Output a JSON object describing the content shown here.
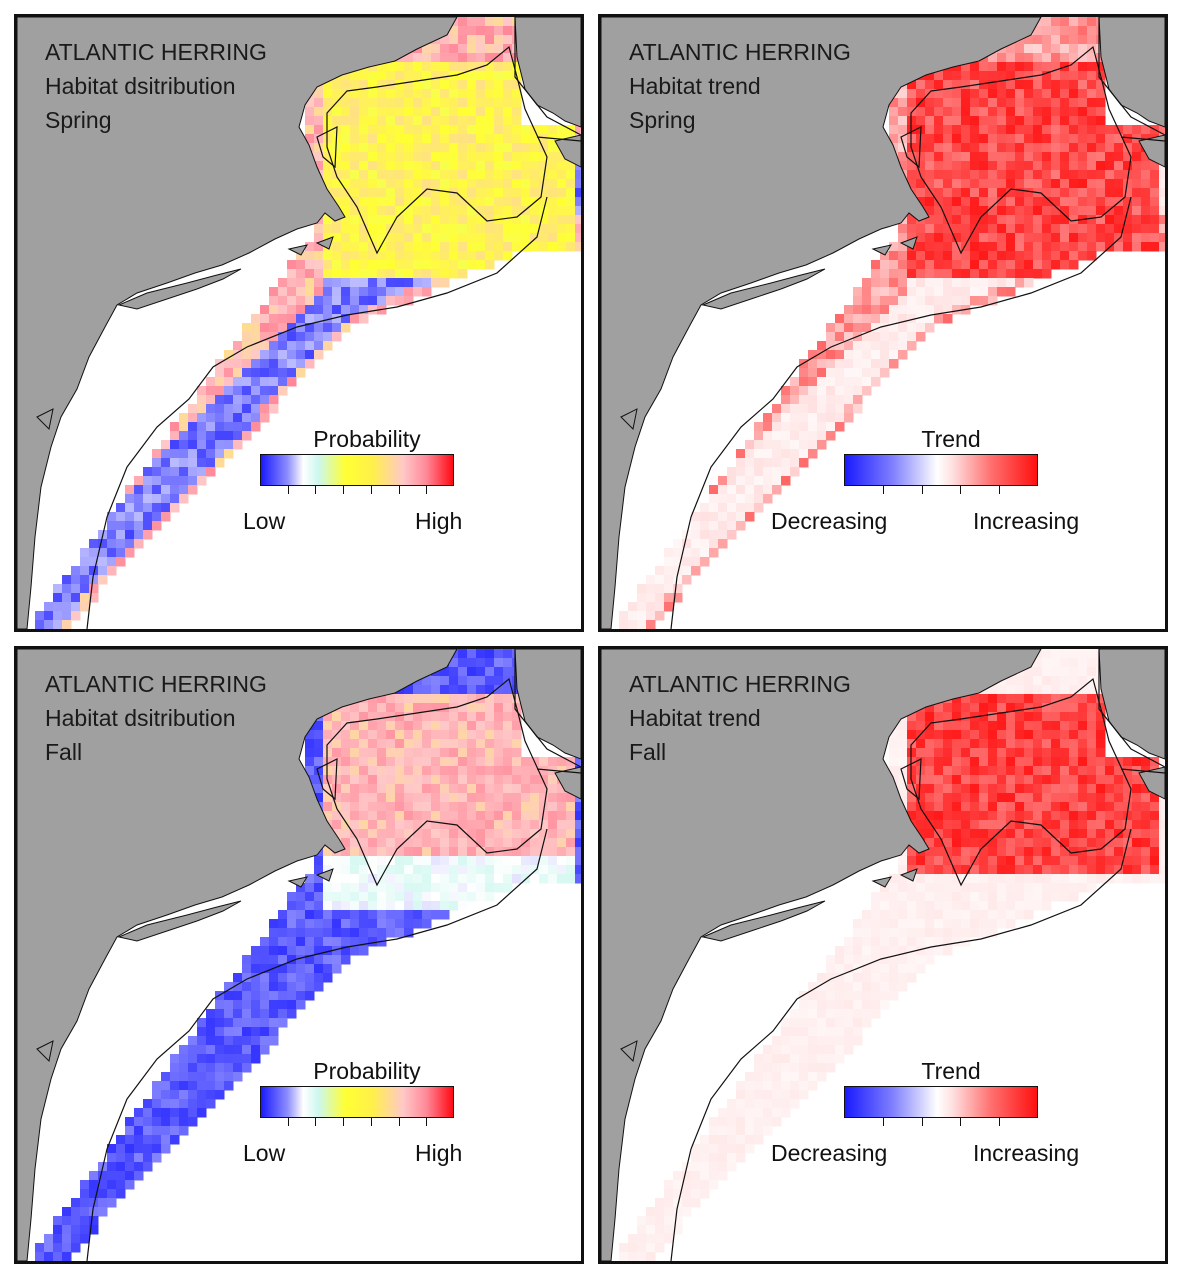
{
  "panels": [
    {
      "species": "ATLANTIC HERRING",
      "metric": "Habitat dsitribution",
      "season": "Spring",
      "legend": {
        "title": "Probability",
        "low": "Low",
        "high": "High",
        "scale": "probability"
      },
      "pattern": "spring-distribution"
    },
    {
      "species": "ATLANTIC HERRING",
      "metric": "Habitat trend",
      "season": "Spring",
      "legend": {
        "title": "Trend",
        "low": "Decreasing",
        "high": "Increasing",
        "scale": "trend"
      },
      "pattern": "spring-trend"
    },
    {
      "species": "ATLANTIC HERRING",
      "metric": "Habitat dsitribution",
      "season": "Fall",
      "legend": {
        "title": "Probability",
        "low": "Low",
        "high": "High",
        "scale": "probability"
      },
      "pattern": "fall-distribution"
    },
    {
      "species": "ATLANTIC HERRING",
      "metric": "Habitat trend",
      "season": "Fall",
      "legend": {
        "title": "Trend",
        "low": "Decreasing",
        "high": "Increasing",
        "scale": "trend"
      },
      "pattern": "fall-trend"
    }
  ],
  "colors": {
    "land": "#a0a0a0",
    "water": "#ffffff",
    "outline": "#111111",
    "probability_ramp": [
      "#1a1aff",
      "#8f8fff",
      "#ffffff",
      "#ccf7ee",
      "#ffff33",
      "#ffc8c8",
      "#ff8a9a",
      "#ff0a14"
    ],
    "trend_ramp": [
      "#1a1aff",
      "#8080ff",
      "#ffffff",
      "#ffe0e0",
      "#ff7070",
      "#ff1010"
    ]
  }
}
